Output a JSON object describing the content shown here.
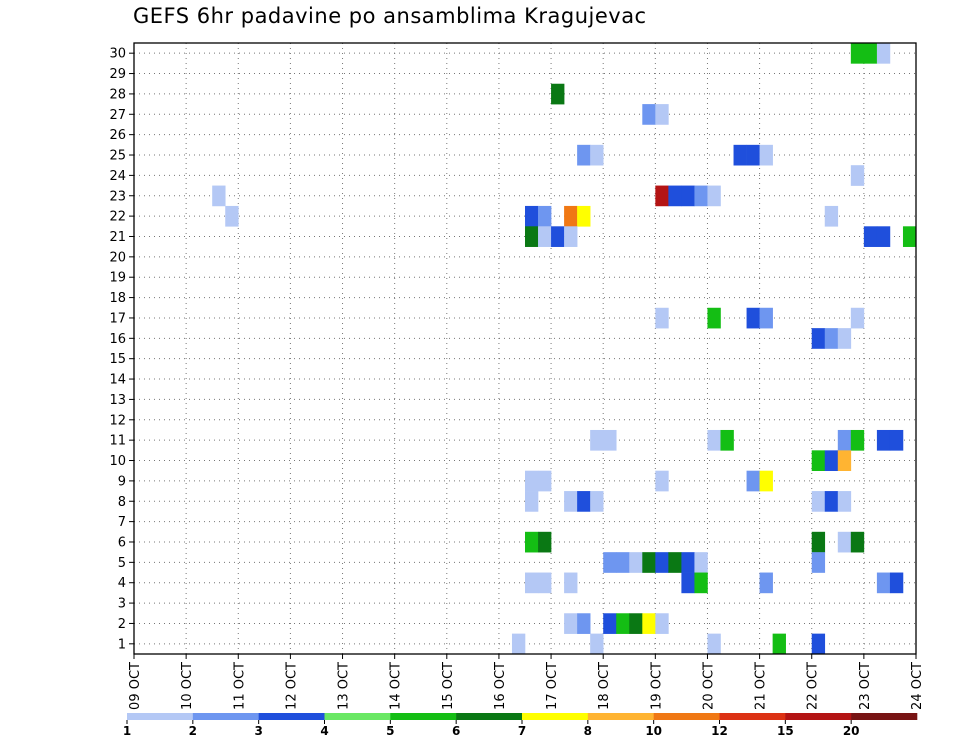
{
  "chart_data": {
    "type": "heatmap",
    "title": "GEFS 6hr padavine po ansamblima Kragujevac",
    "xlabel": "",
    "ylabel": "",
    "x_tick_labels": [
      "09 OCT",
      "10 OCT",
      "11 OCT",
      "12 OCT",
      "13 OCT",
      "14 OCT",
      "15 OCT",
      "16 OCT",
      "17 OCT",
      "18 OCT",
      "19 OCT",
      "20 OCT",
      "21 OCT",
      "22 OCT",
      "23 OCT",
      "24 OCT"
    ],
    "xlim": [
      0,
      60
    ],
    "y_tick_labels": [
      "1",
      "2",
      "3",
      "4",
      "5",
      "6",
      "7",
      "8",
      "9",
      "10",
      "11",
      "12",
      "13",
      "14",
      "15",
      "16",
      "17",
      "18",
      "19",
      "20",
      "21",
      "22",
      "23",
      "24",
      "25",
      "26",
      "27",
      "28",
      "29",
      "30"
    ],
    "ylim": [
      0.5,
      30.5
    ],
    "grid": true,
    "colorbar": {
      "position": "bottom",
      "levels": [
        "1",
        "2",
        "3",
        "4",
        "5",
        "6",
        "7",
        "8",
        "10",
        "12",
        "15",
        "20"
      ],
      "colors": [
        "#b4c8f5",
        "#6e96f0",
        "#1f4fdc",
        "#6ae864",
        "#14be14",
        "#0a7814",
        "#ffff00",
        "#ffb432",
        "#f07814",
        "#dc3214",
        "#b41414",
        "#781414"
      ]
    },
    "cells": [
      [
        56,
        30,
        4
      ],
      [
        57,
        30,
        4
      ],
      [
        58,
        30,
        0
      ],
      [
        33,
        28,
        5
      ],
      [
        40,
        27,
        1
      ],
      [
        41,
        27,
        0
      ],
      [
        35,
        25,
        1
      ],
      [
        36,
        25,
        0
      ],
      [
        47,
        25,
        2
      ],
      [
        48,
        25,
        2
      ],
      [
        49,
        25,
        0
      ],
      [
        56,
        24,
        0
      ],
      [
        41,
        23,
        10
      ],
      [
        42,
        23,
        2
      ],
      [
        43,
        23,
        2
      ],
      [
        44,
        23,
        1
      ],
      [
        45,
        23,
        0
      ],
      [
        7,
        23,
        0
      ],
      [
        8,
        22,
        0
      ],
      [
        31,
        22,
        2
      ],
      [
        32,
        22,
        1
      ],
      [
        34,
        22,
        8
      ],
      [
        35,
        22,
        6
      ],
      [
        54,
        22,
        0
      ],
      [
        31,
        21,
        5
      ],
      [
        32,
        21,
        0
      ],
      [
        33,
        21,
        2
      ],
      [
        34,
        21,
        0
      ],
      [
        57,
        21,
        2
      ],
      [
        58,
        21,
        2
      ],
      [
        60,
        21,
        4
      ],
      [
        41,
        17,
        0
      ],
      [
        45,
        17,
        4
      ],
      [
        48,
        17,
        2
      ],
      [
        49,
        17,
        1
      ],
      [
        56,
        17,
        0
      ],
      [
        53,
        16,
        2
      ],
      [
        54,
        16,
        1
      ],
      [
        55,
        16,
        0
      ],
      [
        36,
        11,
        0
      ],
      [
        37,
        11,
        0
      ],
      [
        45,
        11,
        0
      ],
      [
        46,
        11,
        4
      ],
      [
        55,
        11,
        1
      ],
      [
        56,
        11,
        4
      ],
      [
        58,
        11,
        2
      ],
      [
        59,
        11,
        2
      ],
      [
        53,
        10,
        4
      ],
      [
        54,
        10,
        2
      ],
      [
        55,
        10,
        7
      ],
      [
        31,
        9,
        0
      ],
      [
        32,
        9,
        0
      ],
      [
        41,
        9,
        0
      ],
      [
        48,
        9,
        1
      ],
      [
        49,
        9,
        6
      ],
      [
        31,
        8,
        0
      ],
      [
        34,
        8,
        0
      ],
      [
        35,
        8,
        2
      ],
      [
        36,
        8,
        0
      ],
      [
        53,
        8,
        0
      ],
      [
        54,
        8,
        2
      ],
      [
        55,
        8,
        0
      ],
      [
        31,
        6,
        4
      ],
      [
        32,
        6,
        5
      ],
      [
        53,
        6,
        5
      ],
      [
        55,
        6,
        0
      ],
      [
        56,
        6,
        5
      ],
      [
        37,
        5,
        1
      ],
      [
        38,
        5,
        1
      ],
      [
        39,
        5,
        0
      ],
      [
        40,
        5,
        5
      ],
      [
        41,
        5,
        2
      ],
      [
        42,
        5,
        5
      ],
      [
        43,
        5,
        2
      ],
      [
        44,
        5,
        0
      ],
      [
        53,
        5,
        1
      ],
      [
        31,
        4,
        0
      ],
      [
        32,
        4,
        0
      ],
      [
        34,
        4,
        0
      ],
      [
        43,
        4,
        2
      ],
      [
        44,
        4,
        4
      ],
      [
        49,
        4,
        1
      ],
      [
        58,
        4,
        1
      ],
      [
        59,
        4,
        2
      ],
      [
        34,
        2,
        0
      ],
      [
        35,
        2,
        1
      ],
      [
        37,
        2,
        2
      ],
      [
        38,
        2,
        4
      ],
      [
        39,
        2,
        5
      ],
      [
        40,
        2,
        6
      ],
      [
        41,
        2,
        0
      ],
      [
        30,
        1,
        0
      ],
      [
        36,
        1,
        0
      ],
      [
        45,
        1,
        0
      ],
      [
        50,
        1,
        4
      ],
      [
        53,
        1,
        2
      ]
    ]
  }
}
